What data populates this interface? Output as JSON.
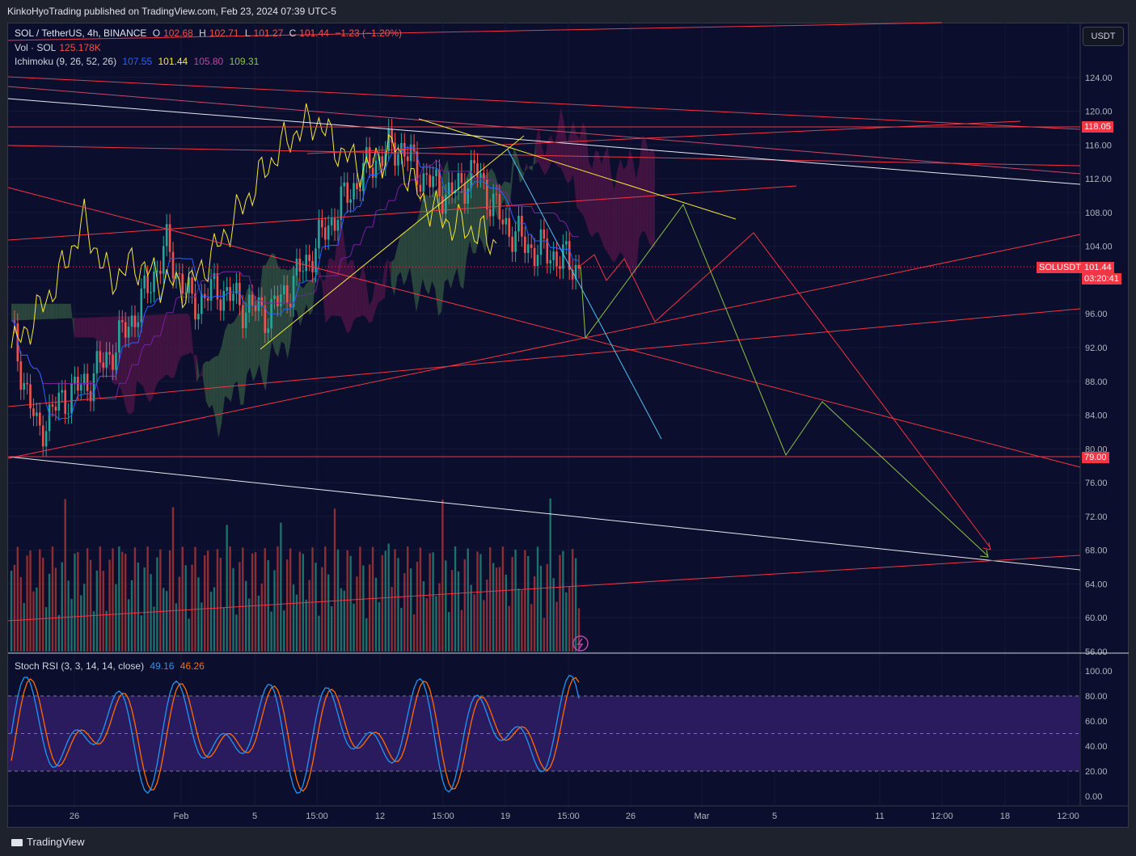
{
  "header": {
    "published": "KinkoHyoTrading published on TradingView.com, Feb 23, 2024 07:39 UTC-5"
  },
  "legend": {
    "symbol": "SOL / TetherUS, 4h, BINANCE",
    "o_label": "O",
    "o_val": "102.68",
    "h_label": "H",
    "h_val": "102.71",
    "l_label": "L",
    "l_val": "101.27",
    "c_label": "C",
    "c_val": "101.44",
    "change": "−1.23 (−1.20%)",
    "vol_label": "Vol · SOL",
    "vol_val": "125.178K",
    "ichi_label": "Ichimoku (9, 26, 52, 26)",
    "ichi_v1": "107.55",
    "ichi_v2": "101.44",
    "ichi_v3": "105.80",
    "ichi_v4": "109.31",
    "stoch_label": "Stoch RSI (3, 3, 14, 14, close)",
    "stoch_k": "49.16",
    "stoch_d": "46.26"
  },
  "currency_button": "USDT",
  "price_labels": {
    "level_high": "118.05",
    "symbol_tag": "SOLUSDT",
    "last_price": "101.44",
    "countdown": "03:20:41",
    "level_low": "79.00"
  },
  "footer": {
    "brand": "TradingView"
  },
  "colors": {
    "background": "#0b0e2c",
    "up": "#26a69a",
    "down": "#ef5350",
    "tenkan": "#2962ff",
    "chikou": "#f5e83a",
    "trendline_red": "#f23645",
    "trendline_yellow": "#f5e83a",
    "trendline_cyan": "#4fc3f7",
    "projection_green": "#8bc34a",
    "stoch_k": "#2196f3",
    "stoch_d": "#ff6d00",
    "stoch_band": "#2a1a5e",
    "cloud_bull": "#2f4f3f",
    "cloud_bear": "#4a1445"
  },
  "chart_data": [
    {
      "type": "candlestick",
      "title": "SOL / TetherUS, 4h, BINANCE",
      "ylabel": "USDT",
      "ylim": [
        56,
        128
      ],
      "y_ticks": [
        "124.00",
        "120.00",
        "116.00",
        "112.00",
        "108.00",
        "104.00",
        "100.00",
        "96.00",
        "92.00",
        "88.00",
        "84.00",
        "80.00",
        "76.00",
        "72.00",
        "68.00",
        "64.00",
        "60.00",
        "56.00"
      ],
      "x_ticks": [
        "26",
        "Feb",
        "5",
        "15:00",
        "12",
        "15:00",
        "19",
        "15:00",
        "26",
        "Mar",
        "5",
        "11",
        "12:00",
        "18",
        "12:00"
      ],
      "close_path_approx": [
        [
          "Jan 22",
          94
        ],
        [
          "Jan 23",
          82
        ],
        [
          "Jan 24",
          86
        ],
        [
          "Jan 25",
          88
        ],
        [
          "Jan 26",
          92
        ],
        [
          "Jan 28",
          97
        ],
        [
          "Jan 30",
          104
        ],
        [
          "Feb 1",
          97
        ],
        [
          "Feb 3",
          99
        ],
        [
          "Feb 5",
          97
        ],
        [
          "Feb 7",
          96
        ],
        [
          "Feb 8",
          100
        ],
        [
          "Feb 10",
          105
        ],
        [
          "Feb 12",
          110
        ],
        [
          "Feb 14",
          114
        ],
        [
          "Feb 15",
          116
        ],
        [
          "Feb 16",
          112
        ],
        [
          "Feb 17",
          110
        ],
        [
          "Feb 19",
          113
        ],
        [
          "Feb 20",
          107
        ],
        [
          "Feb 21",
          104
        ],
        [
          "Feb 22",
          103
        ],
        [
          "Feb 23",
          101.44
        ]
      ],
      "projections": {
        "red_path": [
          101,
          102,
          98,
          104,
          95,
          105,
          68
        ],
        "green_path": [
          101,
          93,
          109,
          79,
          85,
          67
        ]
      },
      "horizontal_levels": [
        118.05,
        79.0
      ],
      "last_price": 101.44
    },
    {
      "type": "bar",
      "title": "Vol · SOL",
      "last_value": "125.178K"
    },
    {
      "type": "line",
      "title": "Stoch RSI (3, 3, 14, 14, close)",
      "ylim": [
        0,
        100
      ],
      "y_ticks": [
        "100.00",
        "80.00",
        "60.00",
        "40.00",
        "20.00",
        "0.00"
      ],
      "bands": [
        80,
        50,
        20
      ],
      "series": [
        {
          "name": "K",
          "last": 49.16
        },
        {
          "name": "D",
          "last": 46.26
        }
      ]
    }
  ]
}
